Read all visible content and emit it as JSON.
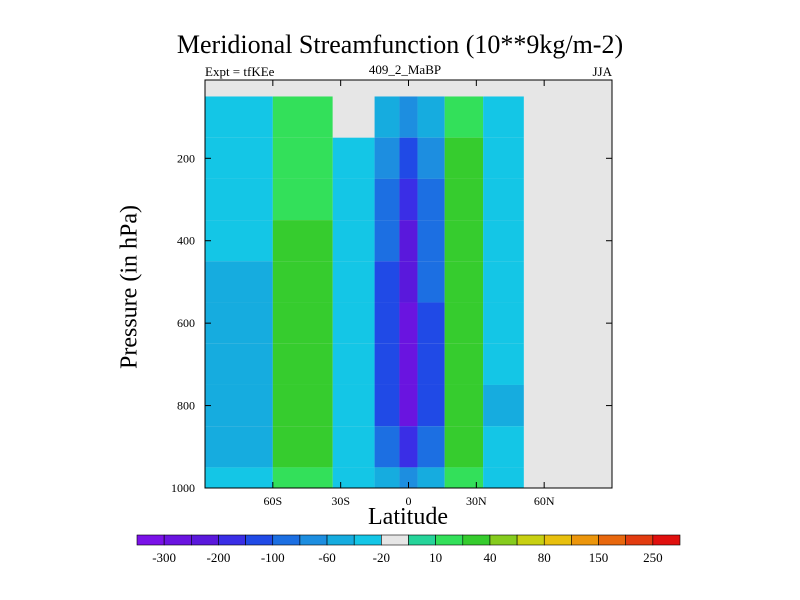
{
  "chart_data": {
    "type": "heatmap",
    "title": "Meridional Streamfunction (10**9kg/m-2)",
    "subtitle_left": "Expt = tfKEe",
    "subtitle_center": "409_2_MaBP",
    "subtitle_right": "JJA",
    "xlabel": "Latitude",
    "ylabel": "Pressure (in hPa)",
    "xlim": [
      -90,
      90
    ],
    "ylim": [
      1000,
      10
    ],
    "x_ticks": [
      -60,
      -30,
      0,
      30,
      60
    ],
    "x_tick_labels": [
      "60S",
      "30S",
      "0",
      "30N",
      "60N"
    ],
    "y_ticks": [
      200,
      400,
      600,
      800,
      1000
    ],
    "y_tick_labels": [
      "200",
      "400",
      "600",
      "800",
      "1000"
    ],
    "contour_levels": [
      -300,
      -250,
      -200,
      -150,
      -100,
      -80,
      -60,
      -40,
      -20,
      -10,
      10,
      20,
      40,
      60,
      80,
      100,
      150,
      200,
      250,
      300
    ],
    "colorbar_labels": [
      "-300",
      "-200",
      "-100",
      "-60",
      "-20",
      "10",
      "40",
      "80",
      "150",
      "250"
    ],
    "colorbar_colors": [
      "#7a12e8",
      "#6a14e0",
      "#5a18dc",
      "#3a2ee6",
      "#204ae6",
      "#1c6fe2",
      "#1d8ee0",
      "#16acdf",
      "#14c6e6",
      "#e6e6e6",
      "#26d49a",
      "#33e05a",
      "#36cc2e",
      "#86cc1e",
      "#c8d012",
      "#e8c00e",
      "#ec960c",
      "#e8680e",
      "#e23c10",
      "#e0100e"
    ],
    "background_color": "#e6e6e6",
    "cells_x": [
      -75,
      -45,
      -22,
      -8,
      0,
      8,
      24,
      42
    ],
    "cells_p": [
      100,
      200,
      300,
      400,
      500,
      600,
      700,
      800,
      900,
      1000
    ],
    "values": [
      [
        -20,
        20,
        0,
        -40,
        -60,
        -40,
        20,
        -20
      ],
      [
        -20,
        20,
        -20,
        -60,
        -100,
        -60,
        40,
        -20
      ],
      [
        -20,
        20,
        -20,
        -80,
        -150,
        -80,
        40,
        -20
      ],
      [
        -20,
        40,
        -20,
        -80,
        -200,
        -80,
        40,
        -20
      ],
      [
        -40,
        40,
        -20,
        -100,
        -200,
        -80,
        40,
        -20
      ],
      [
        -40,
        40,
        -20,
        -100,
        -250,
        -100,
        40,
        -20
      ],
      [
        -40,
        40,
        -20,
        -100,
        -250,
        -100,
        40,
        -20
      ],
      [
        -40,
        40,
        -20,
        -100,
        -250,
        -100,
        40,
        -40
      ],
      [
        -40,
        40,
        -20,
        -80,
        -150,
        -80,
        40,
        -20
      ],
      [
        -20,
        20,
        -20,
        -40,
        -60,
        -40,
        20,
        -20
      ]
    ]
  }
}
